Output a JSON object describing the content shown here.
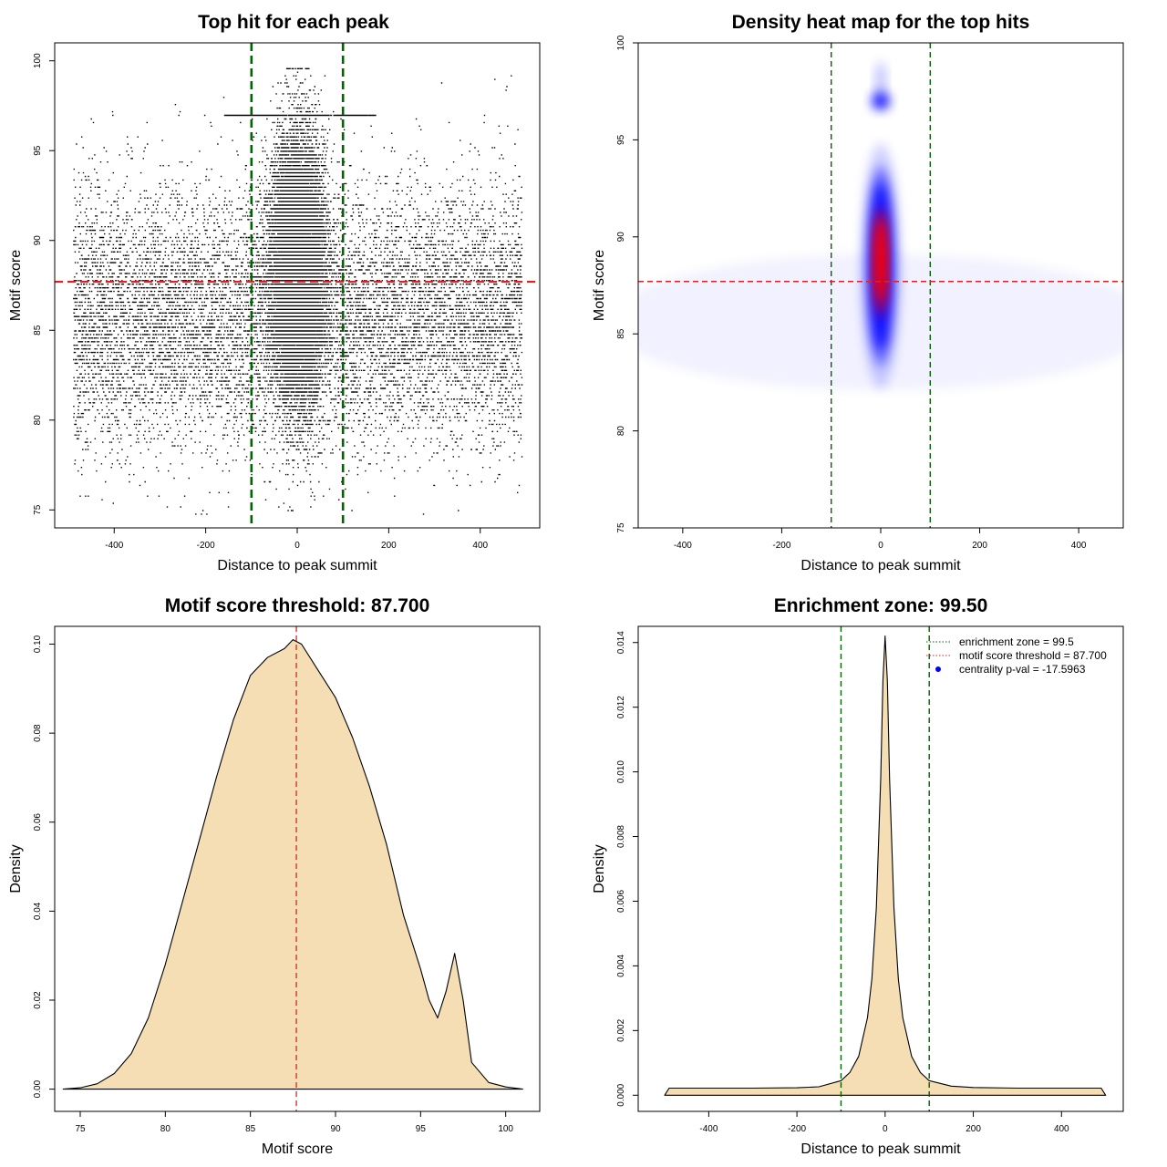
{
  "colors": {
    "axis": "#000000",
    "green_line": "#006400",
    "red_line": "#dd2222",
    "fill": "#f5deb3",
    "heat_low": "#ffffff",
    "heat_mid": "#0000ff",
    "heat_high": "#ff0000",
    "legend_dot": "#0000ff"
  },
  "chart_data": [
    {
      "id": "scatter",
      "type": "scatter",
      "title": "Top hit for each peak",
      "xlabel": "Distance to peak summit",
      "ylabel": "Motif score",
      "xlim": [
        -530,
        530
      ],
      "ylim": [
        74,
        101
      ],
      "xticks": [
        -400,
        -200,
        0,
        200,
        400
      ],
      "yticks": [
        75,
        80,
        85,
        90,
        95,
        100
      ],
      "vlines": [
        -100,
        100
      ],
      "hline": 87.7,
      "point_range_x": [
        -490,
        490
      ],
      "point_range_y": [
        74.6,
        99.5
      ],
      "point_groups": [
        {
          "name": "central",
          "x_mean": 0,
          "x_sd": 28,
          "y_mean": 88.5,
          "y_sd": 3.5
        },
        {
          "name": "background",
          "x_min": -490,
          "x_max": 490,
          "y_mean": 85.8,
          "y_sd": 3.6
        },
        {
          "name": "score-97-stripe",
          "x_min": -160,
          "x_max": 170,
          "y": 97
        }
      ]
    },
    {
      "id": "heatmap",
      "type": "heatmap",
      "title": "Density heat map for the top hits",
      "xlabel": "Distance to peak summit",
      "ylabel": "Motif score",
      "xlim": [
        -490,
        490
      ],
      "ylim": [
        75,
        100
      ],
      "xticks": [
        -400,
        -200,
        0,
        200,
        400
      ],
      "yticks": [
        75,
        80,
        85,
        90,
        95,
        100
      ],
      "vlines": [
        -100,
        100
      ],
      "hline": 87.7,
      "color_scale": [
        "white",
        "blue",
        "red"
      ],
      "hotspots": [
        {
          "x": 0,
          "y": 88.5,
          "x_sd": 13,
          "y_sd": 3.8,
          "weight": 1.0
        },
        {
          "x": 0,
          "y": 97,
          "x_sd": 11,
          "y_sd": 0.7,
          "weight": 0.55
        },
        {
          "x": 0,
          "y": 85.6,
          "x_sd": 320,
          "y_sd": 3.6,
          "weight": 0.06
        }
      ]
    },
    {
      "id": "score-density",
      "type": "area",
      "title": "Motif score threshold: 87.700",
      "xlabel": "Motif score",
      "ylabel": "Density",
      "xlim": [
        73.5,
        102
      ],
      "ylim": [
        -0.005,
        0.104
      ],
      "xticks": [
        75,
        80,
        85,
        90,
        95,
        100
      ],
      "yticks": [
        0.0,
        0.02,
        0.04,
        0.06,
        0.08,
        0.1
      ],
      "ytick_labels": [
        "0.00",
        "0.02",
        "0.04",
        "0.06",
        "0.08",
        "0.10"
      ],
      "vline": 87.7,
      "x": [
        74,
        75,
        76,
        77,
        78,
        79,
        80,
        81,
        82,
        83,
        84,
        85,
        86,
        87,
        87.5,
        88,
        89,
        90,
        91,
        92,
        93,
        94,
        95,
        95.5,
        96,
        96.5,
        97,
        97.5,
        98,
        99,
        100,
        101
      ],
      "y": [
        0.0,
        0.0003,
        0.0012,
        0.0035,
        0.008,
        0.016,
        0.028,
        0.042,
        0.056,
        0.07,
        0.083,
        0.093,
        0.097,
        0.099,
        0.101,
        0.1,
        0.094,
        0.088,
        0.079,
        0.068,
        0.055,
        0.039,
        0.027,
        0.02,
        0.016,
        0.022,
        0.0305,
        0.02,
        0.006,
        0.0015,
        0.0005,
        0.0
      ]
    },
    {
      "id": "distance-density",
      "type": "area",
      "title": "Enrichment zone: 99.50",
      "xlabel": "Distance to peak summit",
      "ylabel": "Density",
      "xlim": [
        -560,
        540
      ],
      "ylim": [
        -0.0005,
        0.0145
      ],
      "xticks": [
        -400,
        -200,
        0,
        200,
        400
      ],
      "yticks": [
        0.0,
        0.002,
        0.004,
        0.006,
        0.008,
        0.01,
        0.012,
        0.014
      ],
      "ytick_labels": [
        "0.000",
        "0.002",
        "0.004",
        "0.006",
        "0.008",
        "0.010",
        "0.012",
        "0.014"
      ],
      "vlines": [
        -100,
        100
      ],
      "x": [
        -500,
        -490,
        -400,
        -300,
        -200,
        -150,
        -100,
        -80,
        -60,
        -40,
        -30,
        -20,
        -10,
        -5,
        0,
        5,
        10,
        20,
        30,
        40,
        60,
        80,
        100,
        150,
        200,
        300,
        400,
        490,
        500
      ],
      "y": [
        0.0,
        0.00022,
        0.00022,
        0.00022,
        0.00023,
        0.00026,
        0.00045,
        0.0007,
        0.0012,
        0.0024,
        0.0036,
        0.0058,
        0.0098,
        0.0128,
        0.0142,
        0.0128,
        0.0098,
        0.0058,
        0.0036,
        0.0024,
        0.0012,
        0.0007,
        0.00045,
        0.00028,
        0.00024,
        0.00022,
        0.00022,
        0.00022,
        0.0
      ],
      "legend": [
        {
          "label": "enrichment zone = 99.5",
          "style": "dotted",
          "color": "#006400"
        },
        {
          "label": "motif score threshold = 87.700",
          "style": "dotted",
          "color": "#dd2222"
        },
        {
          "label": "centrality p-val = -17.5963",
          "style": "dot",
          "color": "#0000ff"
        }
      ]
    }
  ]
}
